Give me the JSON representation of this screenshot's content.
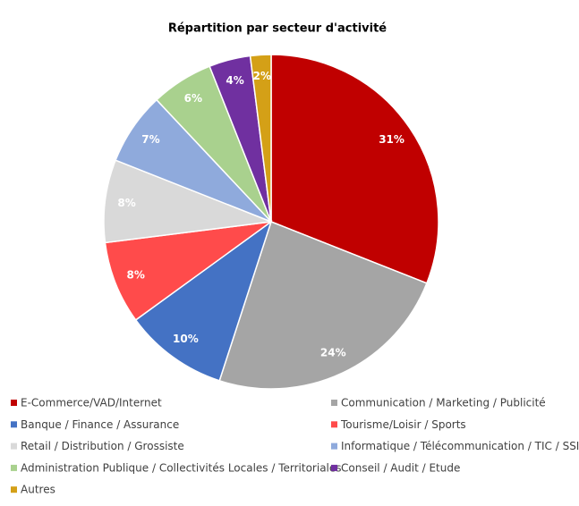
{
  "chart_data": {
    "type": "pie",
    "title": "Répartition par secteur d'activité",
    "categories": [
      "E-Commerce/VAD/Internet",
      "Communication / Marketing / Publicité",
      "Banque / Finance / Assurance",
      "Tourisme/Loisir / Sports",
      "Retail / Distribution / Grossiste",
      "Informatique / Télécommunication / TIC / SSII",
      "Administration Publique / Collectivités Locales / Territoriales",
      "Conseil / Audit / Etude",
      "Autres"
    ],
    "values": [
      31,
      24,
      10,
      8,
      8,
      7,
      6,
      4,
      2
    ],
    "value_labels": [
      "31%",
      "24%",
      "10%",
      "8%",
      "8%",
      "7%",
      "6%",
      "4%",
      "2%"
    ],
    "colors": [
      "#c00000",
      "#a5a5a5",
      "#4472c4",
      "#ff4b4b",
      "#d9d9d9",
      "#8faadc",
      "#a9d18e",
      "#7030a0",
      "#d4a017"
    ],
    "legend": "bottom"
  }
}
